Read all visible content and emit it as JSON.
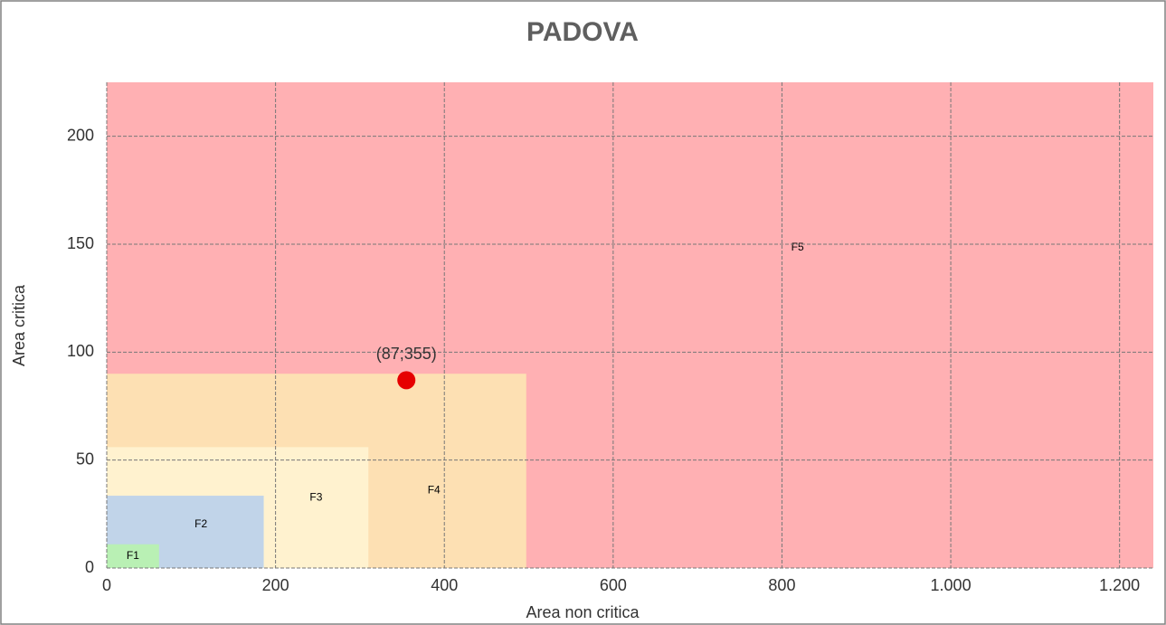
{
  "chart_data": {
    "type": "scatter",
    "title": "PADOVA",
    "x_label": "Area non critica",
    "y_label": "Area critica",
    "xlim": [
      0,
      1240
    ],
    "ylim": [
      0,
      225
    ],
    "xticks": [
      0,
      200,
      400,
      600,
      800,
      {
        "value": 1000,
        "label": "1.000"
      },
      {
        "value": 1200,
        "label": "1.200"
      }
    ],
    "yticks": [
      0,
      50,
      100,
      150,
      200
    ],
    "grid": true,
    "regions": [
      {
        "name": "F5",
        "color": "#ffb0b3",
        "x": 1240,
        "y": 225
      },
      {
        "name": "F4",
        "color": "#fde0b3",
        "x": 497,
        "y": 90
      },
      {
        "name": "F3",
        "color": "#fff2cf",
        "x": 310,
        "y": 56
      },
      {
        "name": "F2",
        "color": "#c1d4e9",
        "x": 186,
        "y": 33.5
      },
      {
        "name": "F1",
        "color": "#b9f0b4",
        "x": 62,
        "y": 11
      }
    ],
    "points": {
      "color": "#e60000",
      "x": [
        355
      ],
      "values": [
        87
      ],
      "labels": [
        "(87;355)"
      ]
    }
  }
}
